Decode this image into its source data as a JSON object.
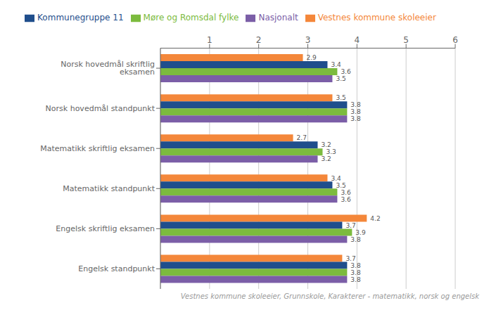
{
  "chart_data": {
    "type": "bar",
    "orientation": "horizontal",
    "categories": [
      "Norsk hovedmål skriftlig eksamen",
      "Norsk hovedmål standpunkt",
      "Matematikk skriftlig eksamen",
      "Matematikk standpunkt",
      "Engelsk skriftlig eksamen",
      "Engelsk standpunkt"
    ],
    "series": [
      {
        "name": "Vestnes kommune skoleeier",
        "color": "#F4873A",
        "values": [
          2.9,
          3.5,
          2.7,
          3.4,
          4.2,
          3.7
        ]
      },
      {
        "name": "Kommunegruppe 11",
        "color": "#1F4E8C",
        "values": [
          3.4,
          3.8,
          3.2,
          3.5,
          3.7,
          3.8
        ]
      },
      {
        "name": "Møre og Romsdal fylke",
        "color": "#7CBB3E",
        "values": [
          3.6,
          3.8,
          3.3,
          3.6,
          3.9,
          3.8
        ]
      },
      {
        "name": "Nasjonalt",
        "color": "#7B5EA7",
        "values": [
          3.5,
          3.8,
          3.2,
          3.6,
          3.8,
          3.8
        ]
      }
    ],
    "xlim": [
      0,
      6
    ],
    "xticks": [
      1,
      2,
      3,
      4,
      5,
      6
    ],
    "grid": true,
    "legend": "top",
    "data_labels": true,
    "footnote": "Vestnes kommune skoleeier, Grunnskole, Karakterer - matematikk, norsk og engelsk"
  }
}
